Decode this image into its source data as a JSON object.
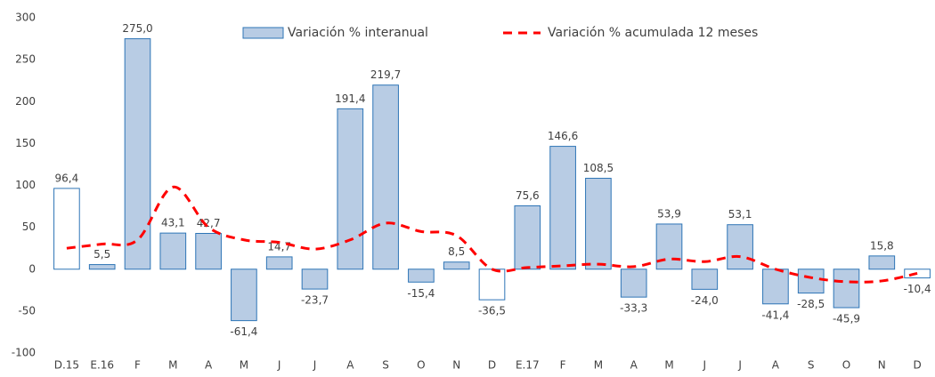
{
  "chart_data": {
    "type": "bar",
    "categories": [
      "D.15",
      "E.16",
      "F",
      "M",
      "A",
      "M",
      "J",
      "J",
      "A",
      "S",
      "O",
      "N",
      "D",
      "E.17",
      "F",
      "M",
      "A",
      "M",
      "J",
      "J",
      "A",
      "S",
      "O",
      "N",
      "D"
    ],
    "series": [
      {
        "name": "Variación % interanual",
        "type": "bar",
        "color": "#b8cce4",
        "stroke": "#2e75b6",
        "colors": [
          "#ffffff",
          "#b8cce4",
          "#b8cce4",
          "#b8cce4",
          "#b8cce4",
          "#b8cce4",
          "#b8cce4",
          "#b8cce4",
          "#b8cce4",
          "#b8cce4",
          "#b8cce4",
          "#b8cce4",
          "#ffffff",
          "#b8cce4",
          "#b8cce4",
          "#b8cce4",
          "#b8cce4",
          "#b8cce4",
          "#b8cce4",
          "#b8cce4",
          "#b8cce4",
          "#b8cce4",
          "#b8cce4",
          "#b8cce4",
          "#ffffff"
        ],
        "values": [
          96.4,
          5.5,
          275.0,
          43.1,
          42.7,
          -61.4,
          14.7,
          -23.7,
          191.4,
          219.7,
          -15.4,
          8.5,
          -36.5,
          75.6,
          146.6,
          108.5,
          -33.3,
          53.9,
          -24.0,
          53.1,
          -41.4,
          -28.5,
          -45.9,
          15.8,
          -10.4
        ],
        "value_labels": [
          "96,4",
          "5,5",
          "275,0",
          "43,1",
          "42,7",
          "-61,4",
          "14,7",
          "-23,7",
          "191,4",
          "219,7",
          "-15,4",
          "8,5",
          "-36,5",
          "75,6",
          "146,6",
          "108,5",
          "-33,3",
          "53,9",
          "-24,0",
          "53,1",
          "-41,4",
          "-28,5",
          "-45,9",
          "15,8",
          "-10,4"
        ]
      },
      {
        "name": "Variación % acumulada 12 meses",
        "type": "line",
        "color": "#ff0000",
        "dashed": true,
        "values": [
          25,
          30,
          35,
          98,
          50,
          35,
          32,
          24,
          35,
          55,
          45,
          40,
          0,
          2,
          4,
          6,
          3,
          12,
          9,
          15,
          0,
          -10,
          -15,
          -14,
          -5
        ]
      }
    ],
    "ylim": [
      -100,
      300
    ],
    "yticks": [
      -100,
      -50,
      0,
      50,
      100,
      150,
      200,
      250,
      300
    ],
    "grid": false,
    "legend": "top"
  }
}
